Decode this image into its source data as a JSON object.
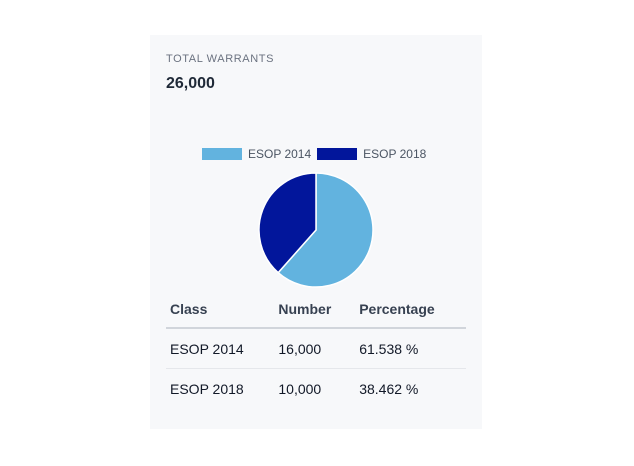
{
  "summary": {
    "label": "TOTAL WARRANTS",
    "value": "26,000"
  },
  "legend": [
    {
      "label": "ESOP 2014",
      "color": "#62b3df"
    },
    {
      "label": "ESOP 2018",
      "color": "#02169b"
    }
  ],
  "chart_data": {
    "type": "pie",
    "categories": [
      "ESOP 2014",
      "ESOP 2018"
    ],
    "values": [
      16000,
      10000
    ],
    "colors": [
      "#62b3df",
      "#02169b"
    ],
    "legend_position": "top"
  },
  "table": {
    "headers": [
      "Class",
      "Number",
      "Percentage"
    ],
    "rows": [
      [
        "ESOP 2014",
        "16,000",
        "61.538 %"
      ],
      [
        "ESOP 2018",
        "10,000",
        "38.462 %"
      ]
    ]
  }
}
